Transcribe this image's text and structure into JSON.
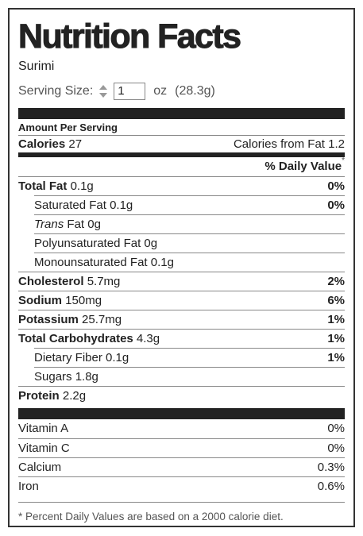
{
  "title": "Nutrition Facts",
  "food": "Surimi",
  "serving": {
    "label": "Serving Size:",
    "quantity": "1",
    "unit": "oz",
    "weight": "(28.3g)"
  },
  "amount_per_serving": "Amount Per Serving",
  "calories": {
    "label": "Calories",
    "value": "27"
  },
  "calories_from_fat": {
    "label": "Calories from Fat",
    "value": "1.2"
  },
  "daily_value_header": "% Daily Value",
  "asterisk": "*",
  "nutrients": [
    {
      "label": "Total Fat",
      "amount": "0.1g",
      "dv": "0%",
      "bold": true,
      "indent": false
    },
    {
      "label": "Saturated Fat",
      "amount": "0.1g",
      "dv": "0%",
      "bold": false,
      "indent": true
    },
    {
      "label_italic": "Trans",
      "label": "Fat",
      "amount": "0g",
      "bold": false,
      "indent": true
    },
    {
      "label": "Polyunsaturated Fat",
      "amount": "0g",
      "bold": false,
      "indent": true
    },
    {
      "label": "Monounsaturated Fat",
      "amount": "0.1g",
      "bold": false,
      "indent": true
    },
    {
      "label": "Cholesterol",
      "amount": "5.7mg",
      "dv": "2%",
      "bold": true,
      "indent": false
    },
    {
      "label": "Sodium",
      "amount": "150mg",
      "dv": "6%",
      "bold": true,
      "indent": false
    },
    {
      "label": "Potassium",
      "amount": "25.7mg",
      "dv": "1%",
      "bold": true,
      "indent": false
    },
    {
      "label": "Total Carbohydrates",
      "amount": "4.3g",
      "dv": "1%",
      "bold": true,
      "indent": false
    },
    {
      "label": "Dietary Fiber",
      "amount": "0.1g",
      "dv": "1%",
      "bold": false,
      "indent": true
    },
    {
      "label": "Sugars",
      "amount": "1.8g",
      "bold": false,
      "indent": true
    },
    {
      "label": "Protein",
      "amount": "2.2g",
      "bold": true,
      "indent": false
    }
  ],
  "vitamins": [
    {
      "label": "Vitamin A",
      "dv": "0%"
    },
    {
      "label": "Vitamin C",
      "dv": "0%"
    },
    {
      "label": "Calcium",
      "dv": "0.3%"
    },
    {
      "label": "Iron",
      "dv": "0.6%"
    }
  ],
  "footnote": "* Percent Daily Values are based on a 2000 calorie diet."
}
